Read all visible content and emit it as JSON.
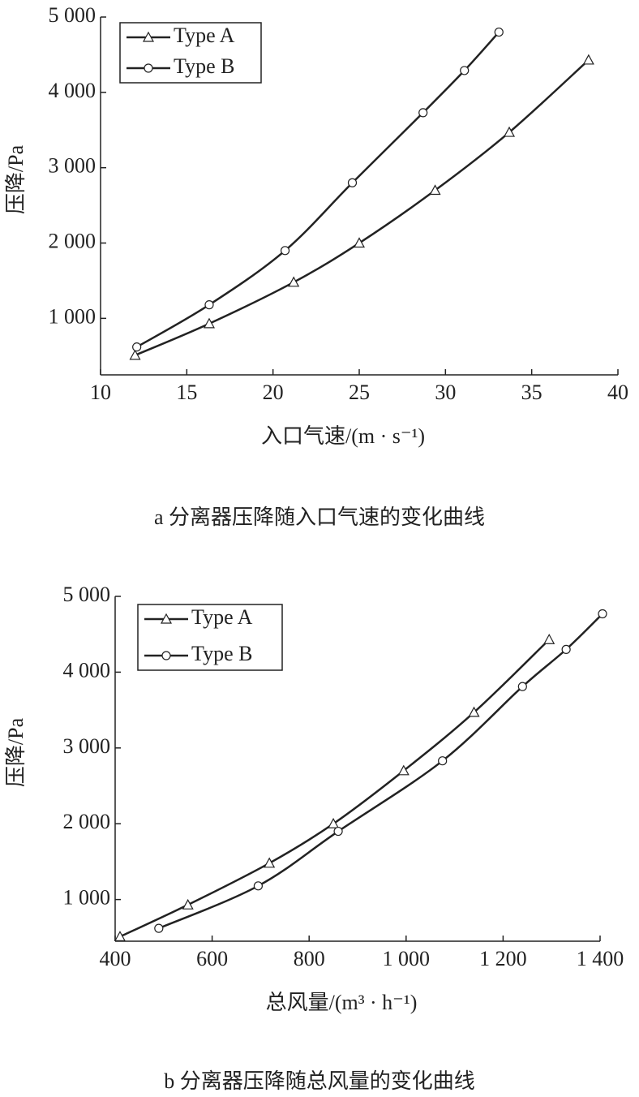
{
  "chart_data": [
    {
      "type": "line",
      "caption": "a 分离器压降随入口气速的变化曲线",
      "x_label": "入口气速/(m · s⁻¹)",
      "y_label": "压降/Pa",
      "xlim": [
        10,
        40
      ],
      "xticks": [
        10,
        15,
        20,
        25,
        30,
        35,
        40
      ],
      "ylim": [
        250,
        5000
      ],
      "yticks": [
        {
          "value": 1000,
          "label": "1 000"
        },
        {
          "value": 2000,
          "label": "2 000"
        },
        {
          "value": 3000,
          "label": "3 000"
        },
        {
          "value": 4000,
          "label": "4 000"
        },
        {
          "value": 5000,
          "label": "5 000"
        }
      ],
      "legend": "top-left",
      "series": [
        {
          "name": "Type A",
          "color": "#222222",
          "marker": "triangle",
          "x": [
            12,
            16.3,
            21.2,
            25,
            29.4,
            33.7,
            38.3
          ],
          "values": [
            510,
            930,
            1480,
            2000,
            2700,
            3470,
            4430
          ]
        },
        {
          "name": "Type B",
          "color": "#222222",
          "marker": "circle",
          "x": [
            12.1,
            16.3,
            20.7,
            24.6,
            28.7,
            31.1,
            33.1
          ],
          "values": [
            620,
            1180,
            1900,
            2800,
            3730,
            4290,
            4800
          ]
        }
      ]
    },
    {
      "type": "line",
      "caption": "b 分离器压降随总风量的变化曲线",
      "x_label": "总风量/(m³ · h⁻¹)",
      "y_label": "压降/Pa",
      "xlim": [
        400,
        1400
      ],
      "xticks": [
        400,
        600,
        800,
        {
          "value": 1000,
          "label": "1 000"
        },
        {
          "value": 1200,
          "label": "1 200"
        },
        {
          "value": 1400,
          "label": "1 400"
        }
      ],
      "ylim": [
        450,
        5000
      ],
      "yticks": [
        {
          "value": 1000,
          "label": "1 000"
        },
        {
          "value": 2000,
          "label": "2 000"
        },
        {
          "value": 3000,
          "label": "3 000"
        },
        {
          "value": 4000,
          "label": "4 000"
        },
        {
          "value": 5000,
          "label": "5 000"
        }
      ],
      "legend": "top-left",
      "series": [
        {
          "name": "Type A",
          "color": "#222222",
          "marker": "triangle",
          "x": [
            410,
            550,
            718,
            850,
            995,
            1140,
            1295
          ],
          "values": [
            510,
            930,
            1480,
            2000,
            2700,
            3470,
            4430
          ]
        },
        {
          "name": "Type B",
          "color": "#222222",
          "marker": "circle",
          "x": [
            490,
            695,
            860,
            1075,
            1240,
            1330,
            1405
          ],
          "values": [
            620,
            1180,
            1900,
            2830,
            3810,
            4300,
            4770
          ]
        }
      ]
    }
  ]
}
